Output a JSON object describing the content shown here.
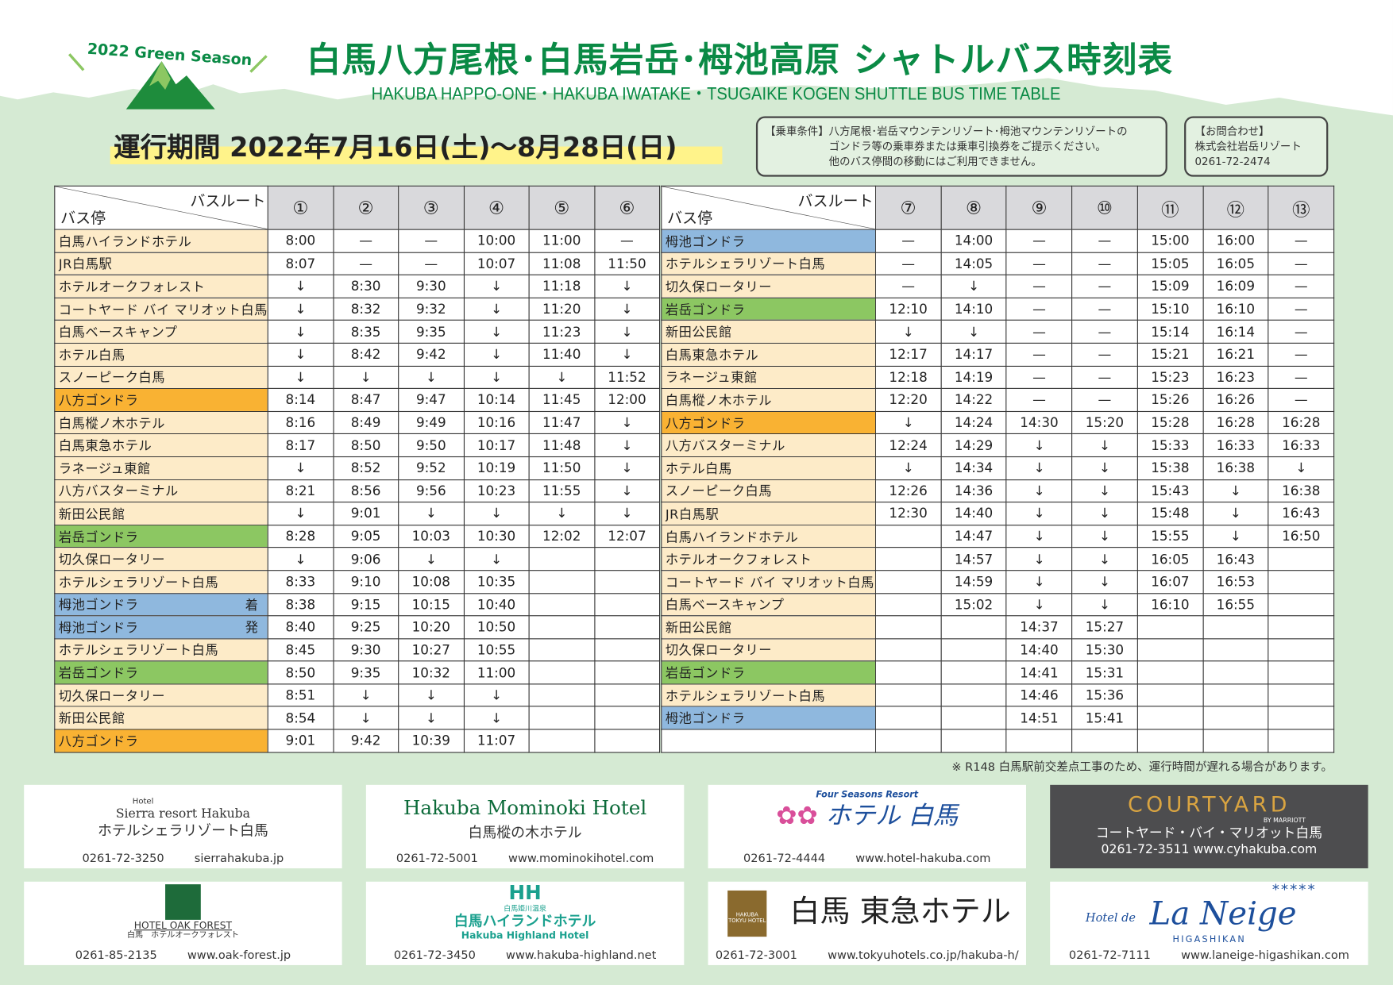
{
  "header": {
    "season_badge": "2022 Green Season",
    "title": "白馬八方尾根･白馬岩岳･栂池高原 シャトルバス時刻表",
    "subtitle": "HAKUBA HAPPO-ONE・HAKUBA IWATAKE・TSUGAIKE KOGEN SHUTTLE BUS TIME TABLE",
    "period": "運行期間  2022年7月16日(土)〜8月28日(日)"
  },
  "conditions": {
    "label": "【乗車条件】",
    "lines": [
      "八方尾根･岩岳マウンテンリゾート･栂池マウンテンリゾートの",
      "ゴンドラ等の乗車券または乗車引換券をご提示ください。",
      "他のバス停間の移動にはご利用できません。"
    ]
  },
  "contact": {
    "label": "【お問合わせ】",
    "company": "株式会社岩岳リゾート",
    "phone": "0261-72-2474"
  },
  "colors": {
    "cream": "#fdebc8",
    "orange": "#f9b233",
    "green": "#8cc762",
    "blue": "#8fb8de",
    "title_green": "#0a8a45"
  },
  "table_header": {
    "route": "バスルート",
    "stop": "バス停"
  },
  "left_table": {
    "routes": [
      "①",
      "②",
      "③",
      "④",
      "⑤",
      "⑥"
    ],
    "rows": [
      {
        "stop": "白馬ハイランドホテル",
        "type": "cream",
        "times": [
          "8:00",
          "—",
          "—",
          "10:00",
          "11:00",
          "—"
        ]
      },
      {
        "stop": "JR白馬駅",
        "type": "cream",
        "times": [
          "8:07",
          "—",
          "—",
          "10:07",
          "11:08",
          "11:50"
        ]
      },
      {
        "stop": "ホテルオークフォレスト",
        "type": "cream",
        "times": [
          "↓",
          "8:30",
          "9:30",
          "↓",
          "11:18",
          "↓"
        ]
      },
      {
        "stop": "コートヤード バイ マリオット白馬",
        "type": "cream",
        "times": [
          "↓",
          "8:32",
          "9:32",
          "↓",
          "11:20",
          "↓"
        ]
      },
      {
        "stop": "白馬ベースキャンプ",
        "type": "cream",
        "times": [
          "↓",
          "8:35",
          "9:35",
          "↓",
          "11:23",
          "↓"
        ]
      },
      {
        "stop": "ホテル白馬",
        "type": "cream",
        "times": [
          "↓",
          "8:42",
          "9:42",
          "↓",
          "11:40",
          "↓"
        ]
      },
      {
        "stop": "スノーピーク白馬",
        "type": "cream",
        "times": [
          "↓",
          "↓",
          "↓",
          "↓",
          "↓",
          "11:52"
        ]
      },
      {
        "stop": "八方ゴンドラ",
        "type": "orange",
        "times": [
          "8:14",
          "8:47",
          "9:47",
          "10:14",
          "11:45",
          "12:00"
        ]
      },
      {
        "stop": "白馬樅ノ木ホテル",
        "type": "cream",
        "times": [
          "8:16",
          "8:49",
          "9:49",
          "10:16",
          "11:47",
          "↓"
        ]
      },
      {
        "stop": "白馬東急ホテル",
        "type": "cream",
        "times": [
          "8:17",
          "8:50",
          "9:50",
          "10:17",
          "11:48",
          "↓"
        ]
      },
      {
        "stop": "ラネージュ東館",
        "type": "cream",
        "times": [
          "↓",
          "8:52",
          "9:52",
          "10:19",
          "11:50",
          "↓"
        ]
      },
      {
        "stop": "八方バスターミナル",
        "type": "cream",
        "times": [
          "8:21",
          "8:56",
          "9:56",
          "10:23",
          "11:55",
          "↓"
        ]
      },
      {
        "stop": "新田公民館",
        "type": "cream",
        "times": [
          "↓",
          "9:01",
          "↓",
          "↓",
          "↓",
          "↓"
        ]
      },
      {
        "stop": "岩岳ゴンドラ",
        "type": "green",
        "times": [
          "8:28",
          "9:05",
          "10:03",
          "10:30",
          "12:02",
          "12:07"
        ]
      },
      {
        "stop": "切久保ロータリー",
        "type": "cream",
        "times": [
          "↓",
          "9:06",
          "↓",
          "↓",
          "",
          ""
        ]
      },
      {
        "stop": "ホテルシェラリゾート白馬",
        "type": "cream",
        "times": [
          "8:33",
          "9:10",
          "10:08",
          "10:35",
          "",
          ""
        ]
      },
      {
        "stop": "栂池ゴンドラ",
        "suffix": "着",
        "type": "blue",
        "times": [
          "8:38",
          "9:15",
          "10:15",
          "10:40",
          "",
          ""
        ]
      },
      {
        "stop": "栂池ゴンドラ",
        "suffix": "発",
        "type": "blue",
        "times": [
          "8:40",
          "9:25",
          "10:20",
          "10:50",
          "",
          ""
        ]
      },
      {
        "stop": "ホテルシェラリゾート白馬",
        "type": "cream",
        "times": [
          "8:45",
          "9:30",
          "10:27",
          "10:55",
          "",
          ""
        ]
      },
      {
        "stop": "岩岳ゴンドラ",
        "type": "green",
        "times": [
          "8:50",
          "9:35",
          "10:32",
          "11:00",
          "",
          ""
        ]
      },
      {
        "stop": "切久保ロータリー",
        "type": "cream",
        "times": [
          "8:51",
          "↓",
          "↓",
          "↓",
          "",
          ""
        ]
      },
      {
        "stop": "新田公民館",
        "type": "cream",
        "times": [
          "8:54",
          "↓",
          "↓",
          "↓",
          "",
          ""
        ]
      },
      {
        "stop": "八方ゴンドラ",
        "type": "orange",
        "times": [
          "9:01",
          "9:42",
          "10:39",
          "11:07",
          "",
          ""
        ]
      }
    ]
  },
  "right_table": {
    "routes": [
      "⑦",
      "⑧",
      "⑨",
      "⑩",
      "⑪",
      "⑫",
      "⑬"
    ],
    "rows": [
      {
        "stop": "栂池ゴンドラ",
        "type": "blue",
        "times": [
          "—",
          "14:00",
          "—",
          "—",
          "15:00",
          "16:00",
          "—"
        ]
      },
      {
        "stop": "ホテルシェラリゾート白馬",
        "type": "cream",
        "times": [
          "—",
          "14:05",
          "—",
          "—",
          "15:05",
          "16:05",
          "—"
        ]
      },
      {
        "stop": "切久保ロータリー",
        "type": "cream",
        "times": [
          "—",
          "↓",
          "—",
          "—",
          "15:09",
          "16:09",
          "—"
        ]
      },
      {
        "stop": "岩岳ゴンドラ",
        "type": "green",
        "times": [
          "12:10",
          "14:10",
          "—",
          "—",
          "15:10",
          "16:10",
          "—"
        ]
      },
      {
        "stop": "新田公民館",
        "type": "cream",
        "times": [
          "↓",
          "↓",
          "—",
          "—",
          "15:14",
          "16:14",
          "—"
        ]
      },
      {
        "stop": "白馬東急ホテル",
        "type": "cream",
        "times": [
          "12:17",
          "14:17",
          "—",
          "—",
          "15:21",
          "16:21",
          "—"
        ]
      },
      {
        "stop": "ラネージュ東館",
        "type": "cream",
        "times": [
          "12:18",
          "14:19",
          "—",
          "—",
          "15:23",
          "16:23",
          "—"
        ]
      },
      {
        "stop": "白馬樅ノ木ホテル",
        "type": "cream",
        "times": [
          "12:20",
          "14:22",
          "—",
          "—",
          "15:26",
          "16:26",
          "—"
        ]
      },
      {
        "stop": "八方ゴンドラ",
        "type": "orange",
        "times": [
          "↓",
          "14:24",
          "14:30",
          "15:20",
          "15:28",
          "16:28",
          "16:28"
        ]
      },
      {
        "stop": "八方バスターミナル",
        "type": "cream",
        "times": [
          "12:24",
          "14:29",
          "↓",
          "↓",
          "15:33",
          "16:33",
          "16:33"
        ]
      },
      {
        "stop": "ホテル白馬",
        "type": "cream",
        "times": [
          "↓",
          "14:34",
          "↓",
          "↓",
          "15:38",
          "16:38",
          "↓"
        ]
      },
      {
        "stop": "スノーピーク白馬",
        "type": "cream",
        "times": [
          "12:26",
          "14:36",
          "↓",
          "↓",
          "15:43",
          "↓",
          "16:38"
        ]
      },
      {
        "stop": "JR白馬駅",
        "type": "cream",
        "times": [
          "12:30",
          "14:40",
          "↓",
          "↓",
          "15:48",
          "↓",
          "16:43"
        ]
      },
      {
        "stop": "白馬ハイランドホテル",
        "type": "cream",
        "times": [
          "",
          "14:47",
          "↓",
          "↓",
          "15:55",
          "↓",
          "16:50"
        ]
      },
      {
        "stop": "ホテルオークフォレスト",
        "type": "cream",
        "times": [
          "",
          "14:57",
          "↓",
          "↓",
          "16:05",
          "16:43",
          ""
        ]
      },
      {
        "stop": "コートヤード バイ マリオット白馬",
        "type": "cream",
        "times": [
          "",
          "14:59",
          "↓",
          "↓",
          "16:07",
          "16:53",
          ""
        ]
      },
      {
        "stop": "白馬ベースキャンプ",
        "type": "cream",
        "times": [
          "",
          "15:02",
          "↓",
          "↓",
          "16:10",
          "16:55",
          ""
        ]
      },
      {
        "stop": "新田公民館",
        "type": "cream",
        "times": [
          "",
          "",
          "14:37",
          "15:27",
          "",
          "",
          ""
        ]
      },
      {
        "stop": "切久保ロータリー",
        "type": "cream",
        "times": [
          "",
          "",
          "14:40",
          "15:30",
          "",
          "",
          ""
        ]
      },
      {
        "stop": "岩岳ゴンドラ",
        "type": "green",
        "times": [
          "",
          "",
          "14:41",
          "15:31",
          "",
          "",
          ""
        ]
      },
      {
        "stop": "ホテルシェラリゾート白馬",
        "type": "cream",
        "times": [
          "",
          "",
          "14:46",
          "15:36",
          "",
          "",
          ""
        ]
      },
      {
        "stop": "栂池ゴンドラ",
        "type": "blue",
        "times": [
          "",
          "",
          "14:51",
          "15:41",
          "",
          "",
          ""
        ]
      },
      {
        "stop": "",
        "type": "white",
        "times": [
          "",
          "",
          "",
          "",
          "",
          "",
          ""
        ]
      }
    ]
  },
  "note": "※ R148 白馬駅前交差点工事のため、運行時間が遅れる場合があります。",
  "ads": [
    {
      "logo_small": "Hotel",
      "logo": "Sierra resort Hakuba",
      "name": "ホテルシェラリゾート白馬",
      "phone": "0261-72-3250",
      "url": "sierrahakuba.jp"
    },
    {
      "logo": "Hakuba Mominoki Hotel",
      "name": "白馬樅の木ホテル",
      "phone": "0261-72-5001",
      "url": "www.mominokihotel.com"
    },
    {
      "logo_small": "Four Seasons Resort",
      "logo": "ホテル 白馬",
      "phone": "0261-72-4444",
      "url": "www.hotel-hakuba.com"
    },
    {
      "logo": "COURTYARD",
      "logo_small": "BY MARRIOTT",
      "name": "コートヤード・バイ・マリオット白馬",
      "phone": "0261-72-3511",
      "url": "www.cyhakuba.com"
    },
    {
      "logo": "HOTEL OAK FOREST",
      "name": "白馬　ホテルオークフォレスト",
      "phone": "0261-85-2135",
      "url": "www.oak-forest.jp"
    },
    {
      "logo_small": "白馬姫川温泉",
      "logo": "白馬ハイランドホテル",
      "logo_en": "Hakuba Highland Hotel",
      "phone": "0261-72-3450",
      "url": "www.hakuba-highland.net"
    },
    {
      "logo_small": "HAKUBA TOKYU HOTEL",
      "logo": "白馬 東急ホテル",
      "phone": "0261-72-3001",
      "url": "www.tokyuhotels.co.jp/hakuba-h/"
    },
    {
      "logo_small": "Hotel de",
      "logo": "La Neige",
      "logo_en": "HIGASHIKAN",
      "stars": "*****",
      "phone": "0261-72-7111",
      "url": "www.laneige-higashikan.com"
    }
  ]
}
